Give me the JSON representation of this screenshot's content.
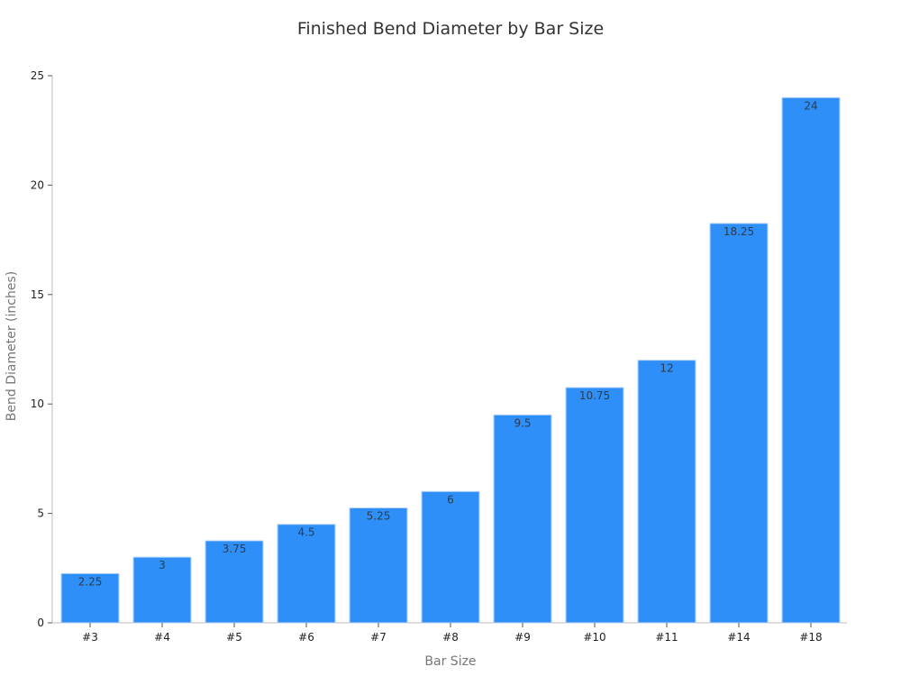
{
  "chart_data": {
    "type": "bar",
    "title": "Finished Bend Diameter by Bar Size",
    "xlabel": "Bar Size",
    "ylabel": "Bend Diameter (inches)",
    "categories": [
      "#3",
      "#4",
      "#5",
      "#6",
      "#7",
      "#8",
      "#9",
      "#10",
      "#11",
      "#14",
      "#18"
    ],
    "values": [
      2.25,
      3,
      3.75,
      4.5,
      5.25,
      6,
      9.5,
      10.75,
      12,
      18.25,
      24
    ],
    "data_labels": [
      "2.25",
      "3",
      "3.75",
      "4.5",
      "5.25",
      "6",
      "9.5",
      "10.75",
      "12",
      "18.25",
      "24"
    ],
    "ylim": [
      0,
      25
    ],
    "yticks": [
      0,
      5,
      10,
      15,
      20,
      25
    ],
    "ytick_labels": [
      "0",
      "5",
      "10",
      "15",
      "20",
      "25"
    ],
    "grid": false,
    "legend": "none",
    "bar_color": "#2d8ff7",
    "bar_edge_color": "#b7d3f5"
  }
}
